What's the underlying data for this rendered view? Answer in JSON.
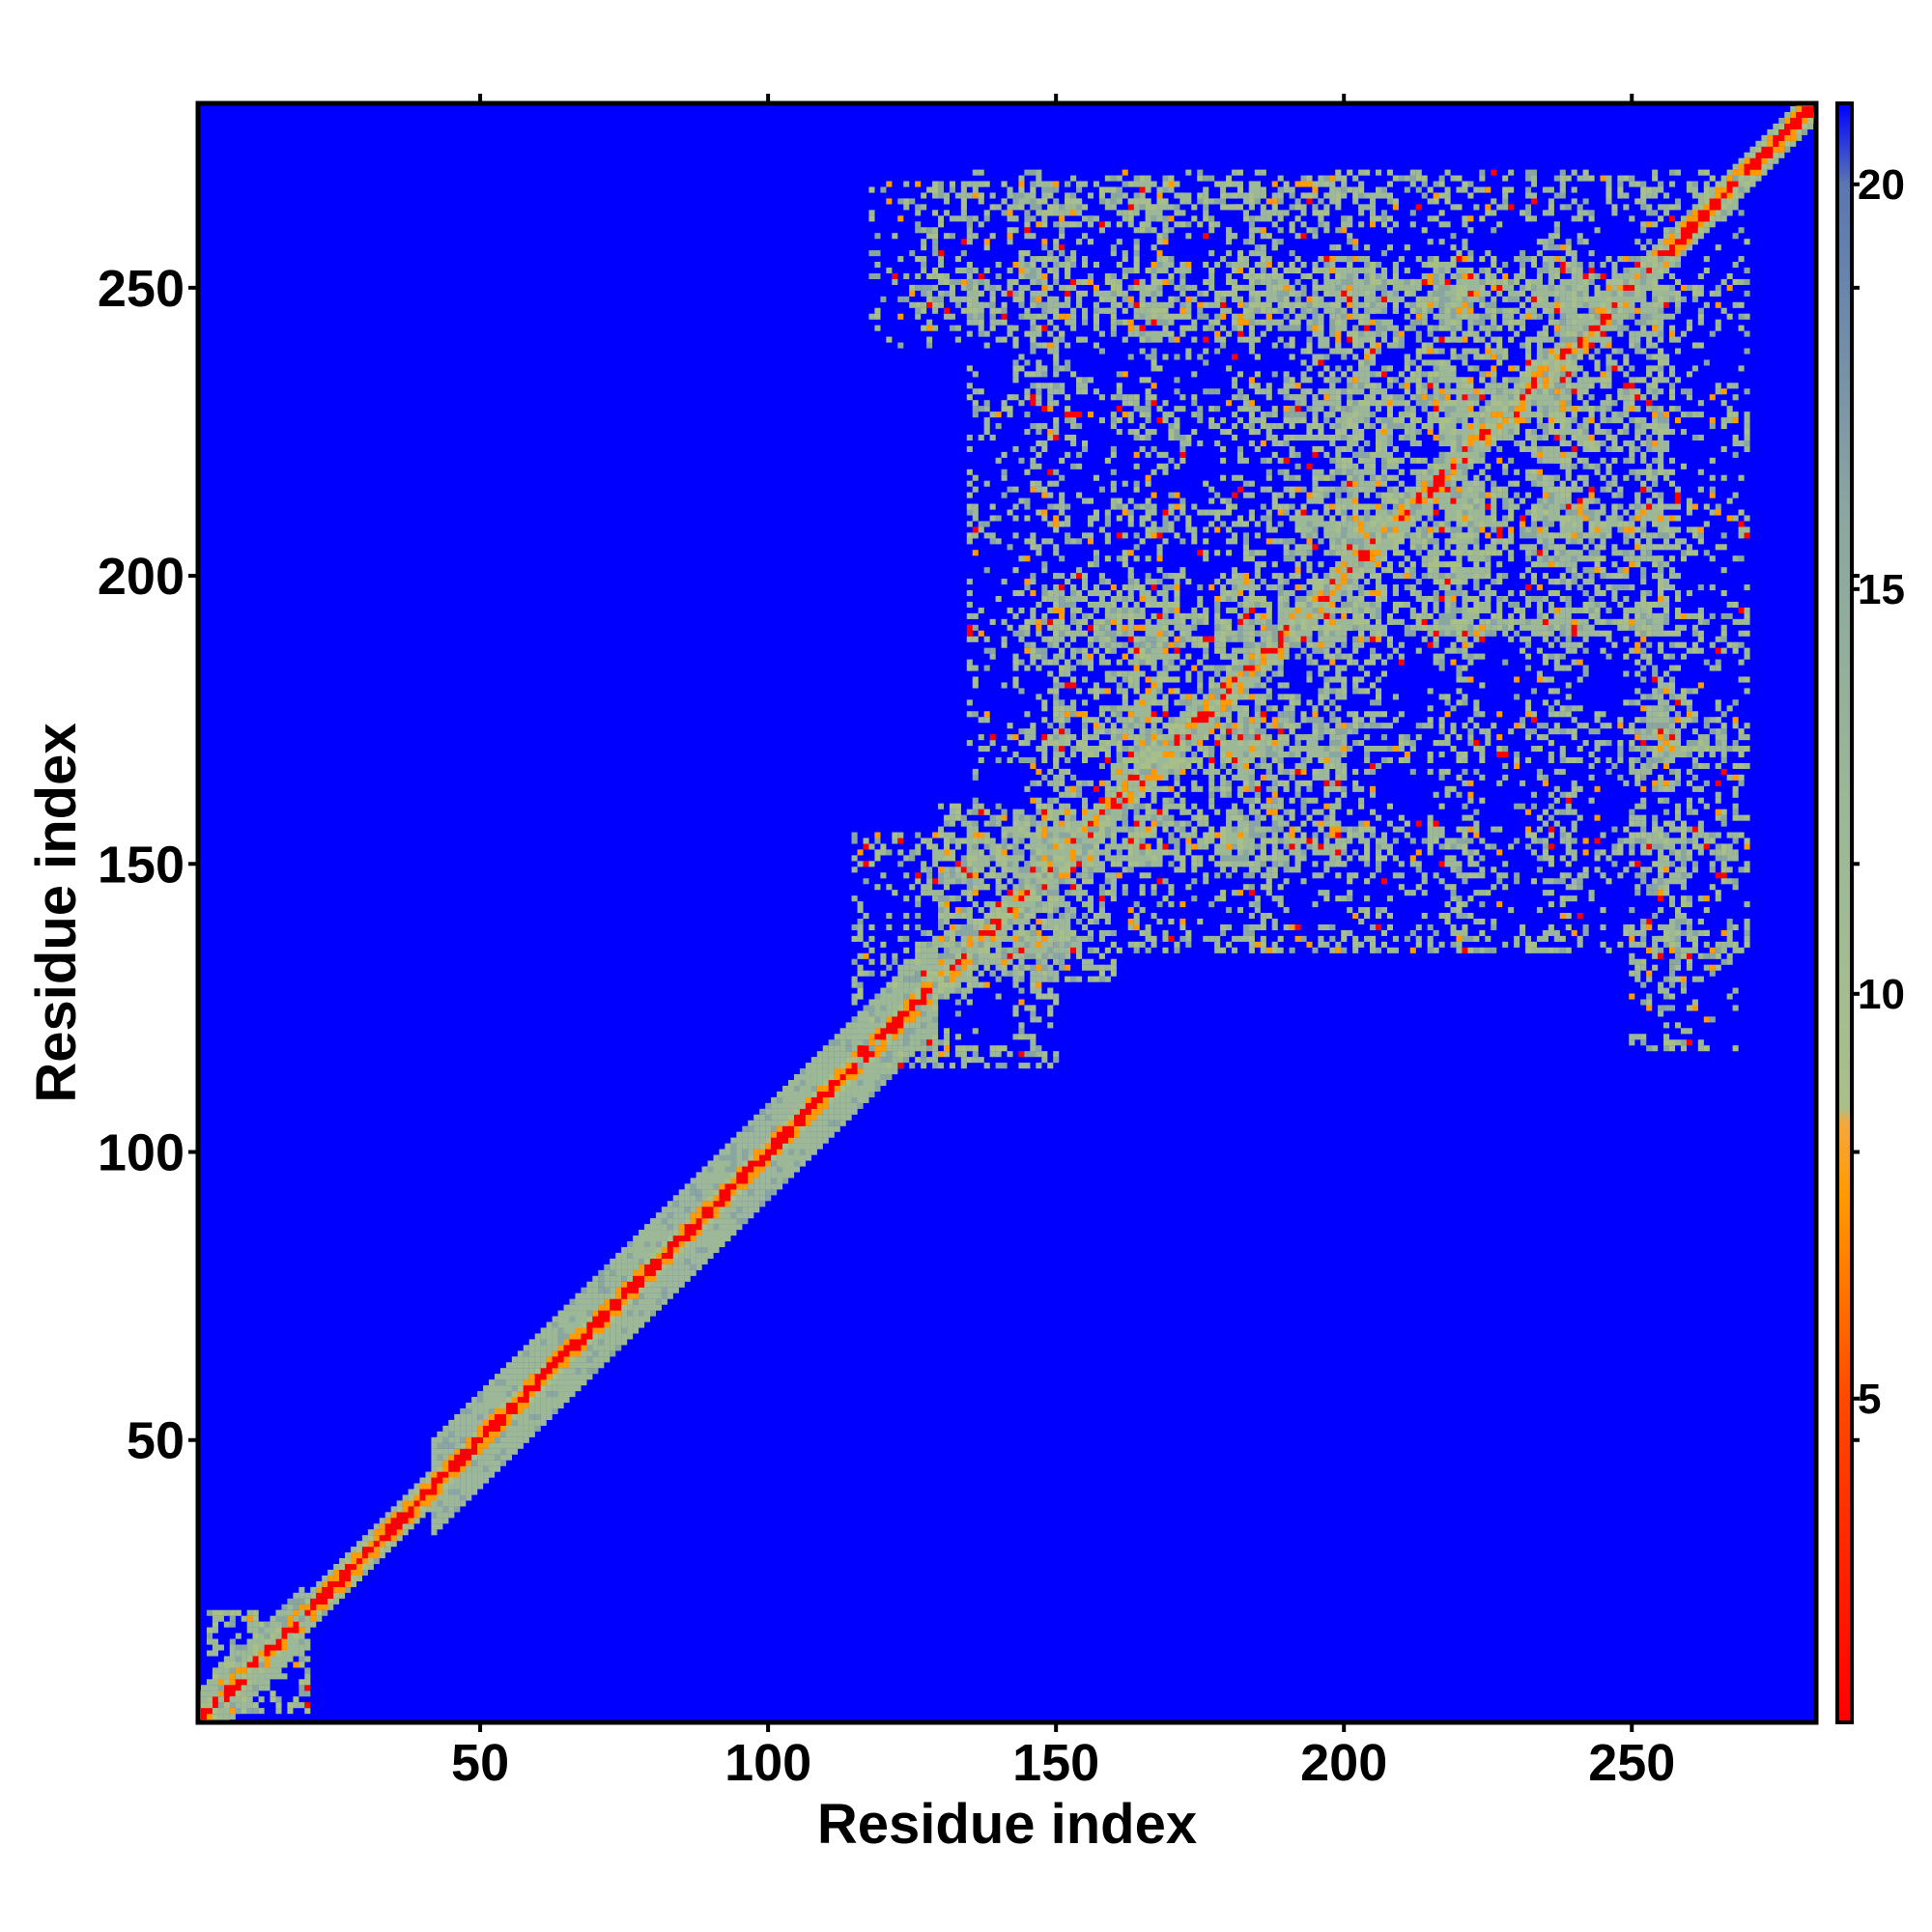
{
  "chart_data": {
    "type": "heatmap",
    "title": "",
    "xlabel": "Residue index",
    "ylabel": "Residue index",
    "xlim": [
      1,
      282
    ],
    "ylim": [
      1,
      282
    ],
    "xticks": [
      50,
      100,
      150,
      200,
      250
    ],
    "yticks": [
      50,
      100,
      150,
      200,
      250
    ],
    "colorbar": {
      "range": [
        1,
        21
      ],
      "ticks": [
        5,
        10,
        15,
        20
      ],
      "stops": [
        {
          "value": 1,
          "color": "#ff0000"
        },
        {
          "value": 5,
          "color": "#ff4a00"
        },
        {
          "value": 7.5,
          "color": "#ff9a00"
        },
        {
          "value": 8.4,
          "color": "#f4a83c"
        },
        {
          "value": 8.6,
          "color": "#a9bf8a"
        },
        {
          "value": 12,
          "color": "#9db897"
        },
        {
          "value": 16,
          "color": "#8aa6a0"
        },
        {
          "value": 20,
          "color": "#5a77b0"
        },
        {
          "value": 21,
          "color": "#0000ff"
        }
      ]
    },
    "background_color": "#0000ff",
    "diagonal_band": {
      "from": 1,
      "to": 282,
      "core_color": "#ff0000",
      "edge_color": "#ff9a00",
      "halo_color": "#9db897"
    },
    "contact_regions": [
      {
        "x": [
          3,
          20
        ],
        "y": [
          3,
          20
        ],
        "level": "medium"
      },
      {
        "x": [
          40,
          130
        ],
        "y": [
          40,
          130
        ],
        "level": "band"
      },
      {
        "x": [
          115,
          150
        ],
        "y": [
          115,
          155
        ],
        "level": "sparse"
      },
      {
        "x": [
          130,
          160
        ],
        "y": [
          130,
          160
        ],
        "level": "dense"
      },
      {
        "x": [
          135,
          270
        ],
        "y": [
          135,
          270
        ],
        "level": "sparse"
      },
      {
        "x": [
          118,
          200
        ],
        "y": [
          240,
          268
        ],
        "level": "sparse"
      },
      {
        "x": [
          250,
          268
        ],
        "y": [
          118,
          180
        ],
        "level": "sparse"
      },
      {
        "x": [
          190,
          255
        ],
        "y": [
          190,
          255
        ],
        "level": "dense"
      },
      {
        "x": [
          150,
          200
        ],
        "y": [
          150,
          200
        ],
        "level": "dense"
      }
    ]
  }
}
